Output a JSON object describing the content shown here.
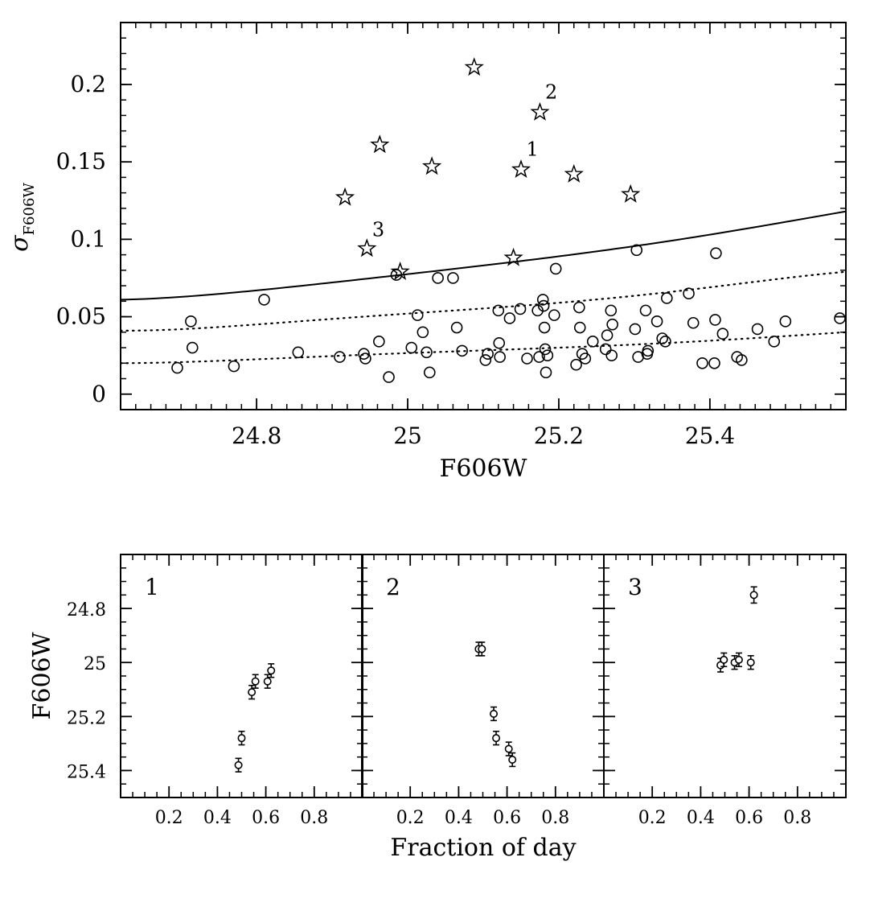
{
  "chart_data": [
    {
      "type": "scatter",
      "xlabel": "F606W",
      "ylabel": "σ",
      "ylabel_sub": "F606W",
      "xlim": [
        24.62,
        25.58
      ],
      "ylim": [
        -0.01,
        0.24
      ],
      "xticks": [
        {
          "v": 24.8,
          "label": "24.8"
        },
        {
          "v": 25.0,
          "label": "25"
        },
        {
          "v": 25.2,
          "label": "25.2"
        },
        {
          "v": 25.4,
          "label": "25.4"
        }
      ],
      "yticks": [
        {
          "v": 0,
          "label": "0"
        },
        {
          "v": 0.05,
          "label": "0.05"
        },
        {
          "v": 0.1,
          "label": "0.1"
        },
        {
          "v": 0.15,
          "label": "0.15"
        },
        {
          "v": 0.2,
          "label": "0.2"
        }
      ],
      "xminor_step": 0.02,
      "yminor_step": 0.01,
      "series": [
        {
          "name": "non-variable",
          "marker": "circle",
          "points": [
            [
              24.695,
              0.017
            ],
            [
              24.713,
              0.047
            ],
            [
              24.715,
              0.03
            ],
            [
              24.77,
              0.018
            ],
            [
              24.81,
              0.061
            ],
            [
              24.855,
              0.027
            ],
            [
              24.91,
              0.024
            ],
            [
              24.942,
              0.026
            ],
            [
              24.944,
              0.023
            ],
            [
              24.962,
              0.034
            ],
            [
              24.975,
              0.011
            ],
            [
              24.985,
              0.077
            ],
            [
              25.005,
              0.03
            ],
            [
              25.013,
              0.051
            ],
            [
              25.02,
              0.04
            ],
            [
              25.025,
              0.027
            ],
            [
              25.029,
              0.014
            ],
            [
              25.04,
              0.075
            ],
            [
              25.06,
              0.075
            ],
            [
              25.065,
              0.043
            ],
            [
              25.072,
              0.028
            ],
            [
              25.103,
              0.022
            ],
            [
              25.106,
              0.026
            ],
            [
              25.12,
              0.054
            ],
            [
              25.121,
              0.033
            ],
            [
              25.122,
              0.024
            ],
            [
              25.135,
              0.049
            ],
            [
              25.149,
              0.055
            ],
            [
              25.158,
              0.023
            ],
            [
              25.172,
              0.054
            ],
            [
              25.174,
              0.024
            ],
            [
              25.179,
              0.061
            ],
            [
              25.18,
              0.057
            ],
            [
              25.181,
              0.043
            ],
            [
              25.182,
              0.029
            ],
            [
              25.183,
              0.014
            ],
            [
              25.185,
              0.025
            ],
            [
              25.194,
              0.051
            ],
            [
              25.196,
              0.081
            ],
            [
              25.223,
              0.019
            ],
            [
              25.227,
              0.056
            ],
            [
              25.228,
              0.043
            ],
            [
              25.231,
              0.026
            ],
            [
              25.235,
              0.023
            ],
            [
              25.245,
              0.034
            ],
            [
              25.262,
              0.029
            ],
            [
              25.264,
              0.038
            ],
            [
              25.269,
              0.054
            ],
            [
              25.27,
              0.025
            ],
            [
              25.271,
              0.045
            ],
            [
              25.301,
              0.042
            ],
            [
              25.303,
              0.093
            ],
            [
              25.305,
              0.024
            ],
            [
              25.315,
              0.054
            ],
            [
              25.317,
              0.026
            ],
            [
              25.318,
              0.028
            ],
            [
              25.33,
              0.047
            ],
            [
              25.337,
              0.036
            ],
            [
              25.341,
              0.034
            ],
            [
              25.343,
              0.062
            ],
            [
              25.372,
              0.065
            ],
            [
              25.378,
              0.046
            ],
            [
              25.39,
              0.02
            ],
            [
              25.406,
              0.02
            ],
            [
              25.407,
              0.048
            ],
            [
              25.408,
              0.091
            ],
            [
              25.417,
              0.039
            ],
            [
              25.436,
              0.024
            ],
            [
              25.442,
              0.022
            ],
            [
              25.463,
              0.042
            ],
            [
              25.485,
              0.034
            ],
            [
              25.5,
              0.047
            ],
            [
              25.572,
              0.049
            ]
          ]
        },
        {
          "name": "variable",
          "marker": "star",
          "points": [
            [
              24.917,
              0.127
            ],
            [
              24.946,
              0.094
            ],
            [
              24.963,
              0.161
            ],
            [
              24.99,
              0.079
            ],
            [
              25.032,
              0.147
            ],
            [
              25.088,
              0.211
            ],
            [
              25.14,
              0.088
            ],
            [
              25.15,
              0.145
            ],
            [
              25.175,
              0.182
            ],
            [
              25.22,
              0.142
            ],
            [
              25.295,
              0.129
            ]
          ]
        }
      ],
      "annotations": [
        {
          "text": "1",
          "x": 25.157,
          "y": 0.154
        },
        {
          "text": "2",
          "x": 25.182,
          "y": 0.191
        },
        {
          "text": "3",
          "x": 24.953,
          "y": 0.102
        }
      ],
      "curves": [
        {
          "name": "threshold",
          "style": "solid",
          "x": [
            24.62,
            24.8,
            25.0,
            25.2,
            25.4,
            25.58
          ],
          "y": [
            0.061,
            0.067,
            0.0775,
            0.089,
            0.103,
            0.118
          ]
        },
        {
          "name": "2sigma",
          "style": "dotted",
          "x": [
            24.62,
            24.8,
            25.0,
            25.2,
            25.4,
            25.58
          ],
          "y": [
            0.041,
            0.045,
            0.052,
            0.059,
            0.069,
            0.079
          ]
        },
        {
          "name": "1sigma",
          "style": "dotted",
          "x": [
            24.62,
            24.8,
            25.0,
            25.2,
            25.4,
            25.58
          ],
          "y": [
            0.02,
            0.0225,
            0.0265,
            0.03,
            0.0345,
            0.04
          ]
        }
      ]
    },
    {
      "type": "scatter",
      "panel": "1",
      "label": "1",
      "xlim": [
        0.0,
        1.0
      ],
      "ylim": [
        25.5,
        24.6
      ],
      "points": [
        {
          "x": 0.487,
          "y": 25.38,
          "err": 0.025
        },
        {
          "x": 0.5,
          "y": 25.28,
          "err": 0.025
        },
        {
          "x": 0.542,
          "y": 25.11,
          "err": 0.025
        },
        {
          "x": 0.557,
          "y": 25.07,
          "err": 0.025
        },
        {
          "x": 0.607,
          "y": 25.07,
          "err": 0.025
        },
        {
          "x": 0.622,
          "y": 25.03,
          "err": 0.025
        }
      ]
    },
    {
      "type": "scatter",
      "panel": "2",
      "label": "2",
      "xlim": [
        0.0,
        1.0
      ],
      "ylim": [
        25.5,
        24.6
      ],
      "points": [
        {
          "x": 0.483,
          "y": 24.95,
          "err": 0.025
        },
        {
          "x": 0.496,
          "y": 24.95,
          "err": 0.025
        },
        {
          "x": 0.545,
          "y": 25.19,
          "err": 0.025
        },
        {
          "x": 0.555,
          "y": 25.28,
          "err": 0.025
        },
        {
          "x": 0.607,
          "y": 25.32,
          "err": 0.025
        },
        {
          "x": 0.622,
          "y": 25.36,
          "err": 0.025
        }
      ]
    },
    {
      "type": "scatter",
      "panel": "3",
      "label": "3",
      "xlim": [
        0.0,
        1.0
      ],
      "ylim": [
        25.5,
        24.6
      ],
      "points": [
        {
          "x": 0.482,
          "y": 25.01,
          "err": 0.025
        },
        {
          "x": 0.496,
          "y": 24.99,
          "err": 0.025
        },
        {
          "x": 0.54,
          "y": 25.0,
          "err": 0.025
        },
        {
          "x": 0.558,
          "y": 24.99,
          "err": 0.025
        },
        {
          "x": 0.607,
          "y": 25.0,
          "err": 0.025
        },
        {
          "x": 0.62,
          "y": 24.75,
          "err": 0.03
        }
      ]
    }
  ],
  "bottom_axes": {
    "xlabel": "Fraction of day",
    "ylabel": "F606W",
    "xticks": [
      {
        "v": 0.2,
        "label": "0.2"
      },
      {
        "v": 0.4,
        "label": "0.4"
      },
      {
        "v": 0.6,
        "label": "0.6"
      },
      {
        "v": 0.8,
        "label": "0.8"
      }
    ],
    "yticks": [
      {
        "v": 24.8,
        "label": "24.8"
      },
      {
        "v": 25.0,
        "label": "25"
      },
      {
        "v": 25.2,
        "label": "25.2"
      },
      {
        "v": 25.4,
        "label": "25.4"
      }
    ],
    "xminor_step": 0.05,
    "yminor_step": 0.05
  }
}
